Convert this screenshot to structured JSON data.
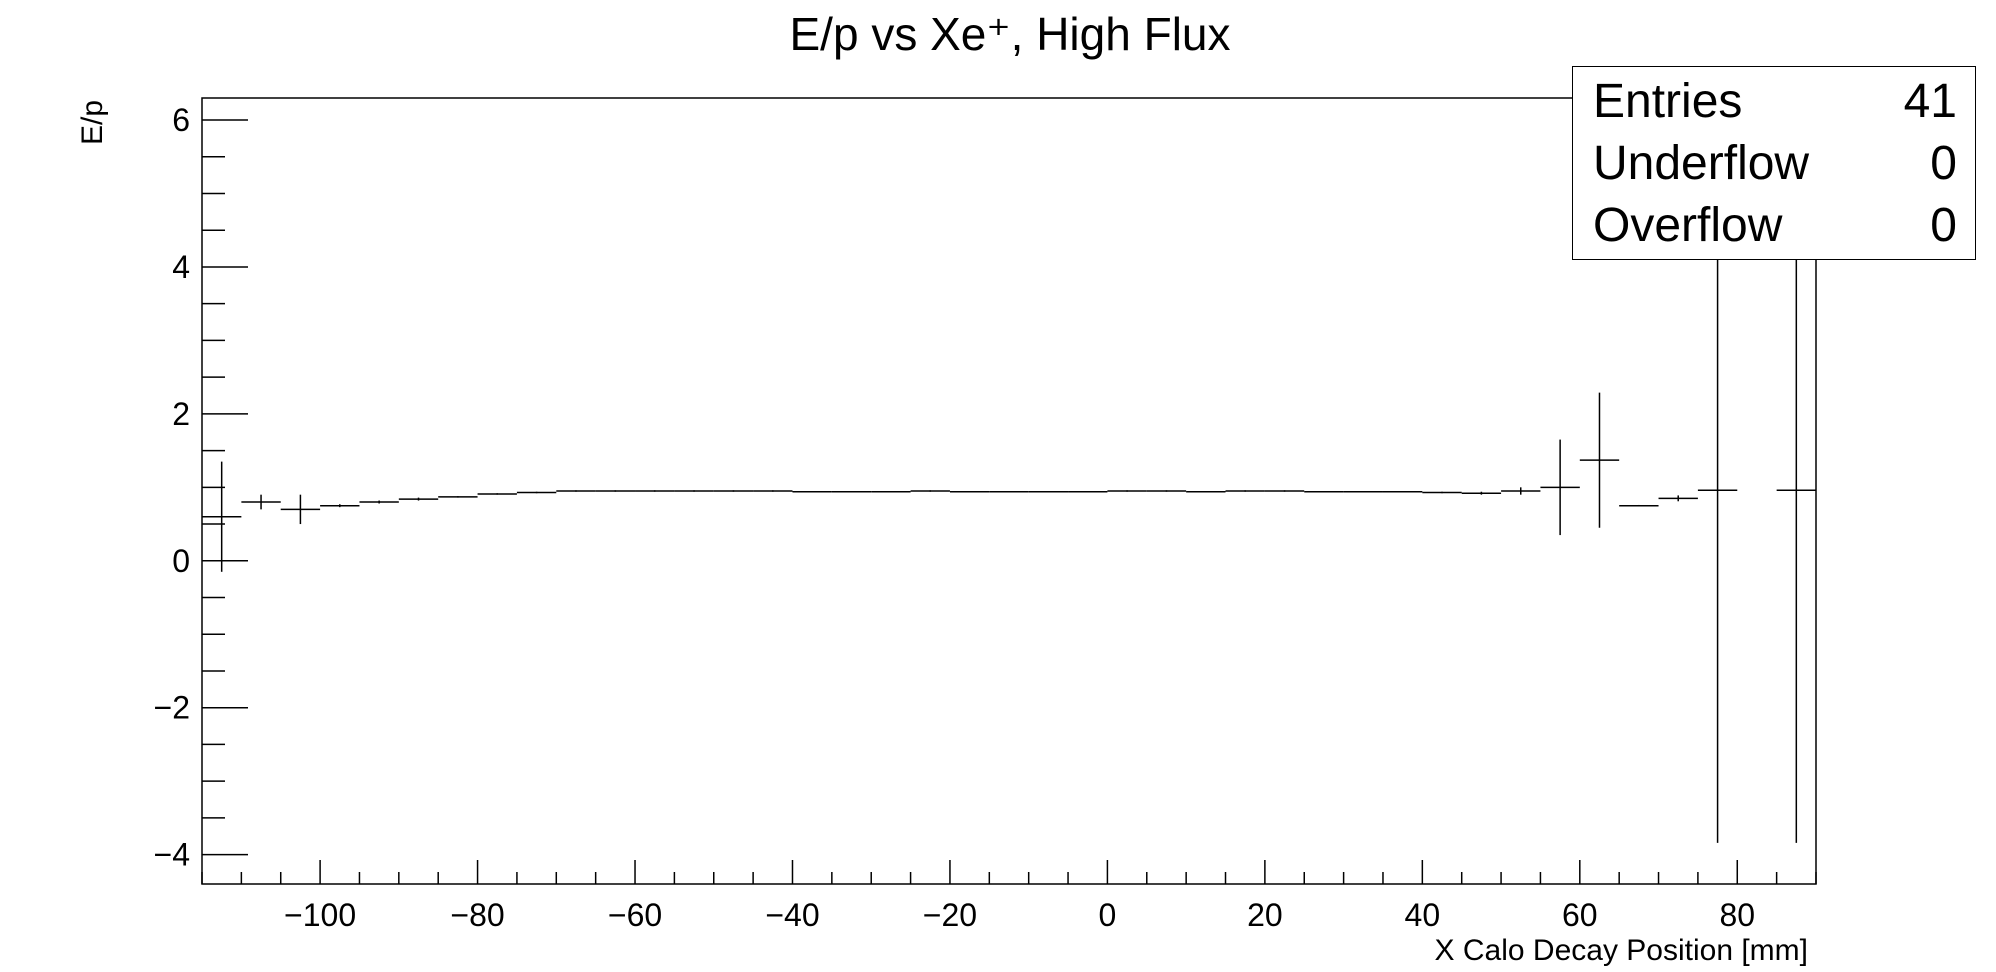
{
  "chart_data": {
    "type": "scatter",
    "title": "E/p vs Xe⁺, High Flux",
    "xlabel": "X Calo Decay Position [mm]",
    "ylabel": "E/p",
    "xlim": [
      -115,
      90
    ],
    "ylim": [
      -4.4,
      6.3
    ],
    "xticks": [
      -100,
      -80,
      -60,
      -40,
      -20,
      0,
      20,
      40,
      60,
      80
    ],
    "xtick_labels": [
      "−100",
      "−80",
      "−60",
      "−40",
      "−20",
      "0",
      "20",
      "40",
      "60",
      "80"
    ],
    "yticks": [
      -4,
      -2,
      0,
      2,
      4,
      6
    ],
    "ytick_labels": [
      "−4",
      "−2",
      "0",
      "2",
      "4",
      "6"
    ],
    "legend": "none",
    "grid": false,
    "series": [
      {
        "x": [
          -112.5,
          -107.5,
          -102.5,
          -97.5,
          -92.5,
          -87.5,
          -82.5,
          -77.5,
          -72.5,
          -67.5,
          -62.5,
          -57.5,
          -52.5,
          -47.5,
          -42.5,
          -37.5,
          -32.5,
          -27.5,
          -22.5,
          -17.5,
          -12.5,
          -7.5,
          -2.5,
          2.5,
          7.5,
          12.5,
          17.5,
          22.5,
          27.5,
          32.5,
          37.5,
          42.5,
          47.5,
          52.5,
          57.5,
          62.5,
          67.5,
          72.5,
          77.5,
          82.5,
          87.5
        ],
        "y": [
          0.6,
          0.8,
          0.7,
          0.75,
          0.8,
          0.84,
          0.87,
          0.91,
          0.93,
          0.95,
          0.95,
          0.95,
          0.95,
          0.95,
          0.95,
          0.94,
          0.94,
          0.94,
          0.95,
          0.94,
          0.94,
          0.94,
          0.94,
          0.95,
          0.95,
          0.94,
          0.95,
          0.95,
          0.94,
          0.94,
          0.94,
          0.93,
          0.92,
          0.95,
          1.0,
          1.37,
          0.75,
          0.85,
          0.96,
          null,
          0.96
        ],
        "yerr": [
          0.75,
          0.1,
          0.2,
          0.02,
          0.02,
          0.02,
          0.01,
          0.01,
          0.01,
          0.01,
          0.01,
          0.01,
          0.01,
          0.01,
          0.01,
          0.01,
          0.01,
          0.01,
          0.01,
          0.01,
          0.01,
          0.01,
          0.01,
          0.01,
          0.01,
          0.01,
          0.01,
          0.01,
          0.01,
          0.01,
          0.01,
          0.01,
          0.02,
          0.05,
          0.65,
          0.92,
          0.01,
          0.04,
          4.8,
          null,
          4.8
        ]
      }
    ]
  },
  "stats": {
    "rows": [
      {
        "key": "Entries",
        "value": "41"
      },
      {
        "key": "Underflow",
        "value": "0"
      },
      {
        "key": "Overflow",
        "value": "0"
      }
    ]
  }
}
